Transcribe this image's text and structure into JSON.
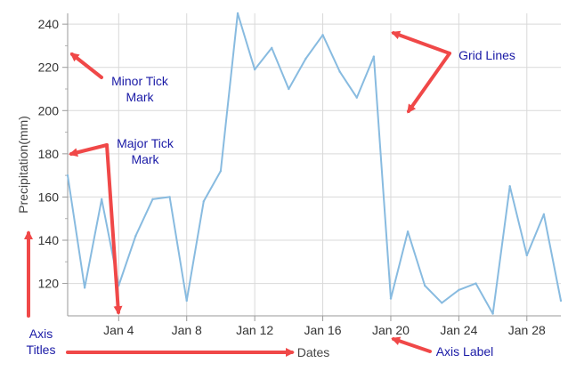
{
  "chart_data": {
    "type": "line",
    "title": "",
    "xlabel": "Dates",
    "ylabel": "Precipitation(mm)",
    "ylim": [
      105,
      245
    ],
    "xlim": [
      "2021-01-01",
      "2021-01-30"
    ],
    "grid": true,
    "y_major_ticks": [
      120,
      140,
      160,
      180,
      200,
      220,
      240
    ],
    "y_tick_labels": [
      "120",
      "140",
      "160",
      "180",
      "200",
      "220",
      "240"
    ],
    "x_major_ticks": [
      "2021-01-04",
      "2021-01-08",
      "2021-01-12",
      "2021-01-16",
      "2021-01-20",
      "2021-01-24",
      "2021-01-28"
    ],
    "x_tick_labels": [
      "Jan 4",
      "Jan 8",
      "Jan 12",
      "Jan 16",
      "Jan 20",
      "Jan 24",
      "Jan 28"
    ],
    "series": [
      {
        "color": "#88bbe0",
        "x": [
          "2021-01-01",
          "2021-01-02",
          "2021-01-03",
          "2021-01-04",
          "2021-01-05",
          "2021-01-06",
          "2021-01-07",
          "2021-01-08",
          "2021-01-09",
          "2021-01-10",
          "2021-01-11",
          "2021-01-12",
          "2021-01-13",
          "2021-01-14",
          "2021-01-15",
          "2021-01-16",
          "2021-01-17",
          "2021-01-18",
          "2021-01-19",
          "2021-01-20",
          "2021-01-21",
          "2021-01-22",
          "2021-01-23",
          "2021-01-24",
          "2021-01-25",
          "2021-01-26",
          "2021-01-27",
          "2021-01-28",
          "2021-01-29",
          "2021-01-30"
        ],
        "values": [
          170,
          118,
          159,
          119,
          142,
          159,
          160,
          112,
          158,
          172,
          245,
          219,
          229,
          210,
          224,
          235,
          218,
          206,
          225,
          113,
          144,
          119,
          111,
          117,
          120,
          106,
          165,
          133,
          152,
          112
        ]
      }
    ],
    "annotations": [
      {
        "id": "minor-tick-mark",
        "lines": [
          "Minor Tick",
          "Mark"
        ]
      },
      {
        "id": "major-tick-mark",
        "lines": [
          "Major Tick",
          "Mark"
        ]
      },
      {
        "id": "grid-lines",
        "lines": [
          "Grid Lines"
        ]
      },
      {
        "id": "axis-titles",
        "lines": [
          "Axis",
          "Titles"
        ]
      },
      {
        "id": "axis-label",
        "lines": [
          "Axis Label"
        ]
      }
    ],
    "annotation_text_color": "#1a1aa6",
    "arrow_color": "#f04848"
  }
}
